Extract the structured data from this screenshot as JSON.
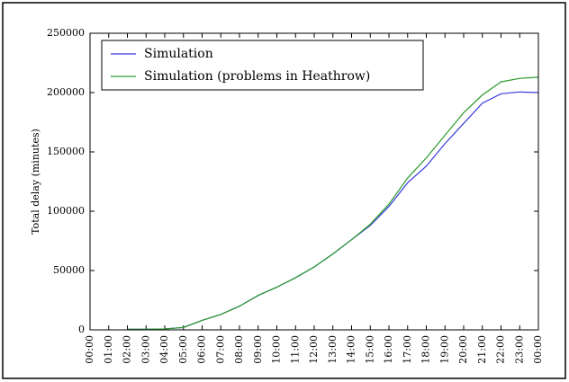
{
  "chart_data": {
    "type": "line",
    "ylabel": "Total delay (minutes)",
    "x": [
      2,
      3,
      4,
      5,
      6,
      7,
      8,
      9,
      10,
      11,
      12,
      13,
      14,
      15,
      16,
      17,
      18,
      19,
      20,
      21,
      22,
      23,
      24
    ],
    "series": [
      {
        "name": "Simulation",
        "color": "#3a3adb",
        "values": [
          500,
          500,
          800,
          2000,
          8000,
          13000,
          20000,
          29000,
          36000,
          44000,
          53000,
          64000,
          76000,
          88000,
          104000,
          124000,
          138000,
          157000,
          174000,
          191000,
          199000,
          200500,
          200000
        ]
      },
      {
        "name": "Simulation (problems in Heathrow)",
        "color": "#2a9a2a",
        "values": [
          500,
          500,
          800,
          2000,
          8000,
          13000,
          20000,
          29000,
          36000,
          44000,
          53000,
          64000,
          76000,
          89000,
          106000,
          128000,
          145000,
          164000,
          183000,
          198000,
          209000,
          212000,
          213000
        ]
      }
    ],
    "xlim": [
      0,
      24
    ],
    "xticks": [
      {
        "value": 0,
        "label": "00:00"
      },
      {
        "value": 1,
        "label": "01:00"
      },
      {
        "value": 2,
        "label": "02:00"
      },
      {
        "value": 3,
        "label": "03:00"
      },
      {
        "value": 4,
        "label": "04:00"
      },
      {
        "value": 5,
        "label": "05:00"
      },
      {
        "value": 6,
        "label": "06:00"
      },
      {
        "value": 7,
        "label": "07:00"
      },
      {
        "value": 8,
        "label": "08:00"
      },
      {
        "value": 9,
        "label": "09:00"
      },
      {
        "value": 10,
        "label": "10:00"
      },
      {
        "value": 11,
        "label": "11:00"
      },
      {
        "value": 12,
        "label": "12:00"
      },
      {
        "value": 13,
        "label": "13:00"
      },
      {
        "value": 14,
        "label": "14:00"
      },
      {
        "value": 15,
        "label": "15:00"
      },
      {
        "value": 16,
        "label": "16:00"
      },
      {
        "value": 17,
        "label": "17:00"
      },
      {
        "value": 18,
        "label": "18:00"
      },
      {
        "value": 19,
        "label": "19:00"
      },
      {
        "value": 20,
        "label": "20:00"
      },
      {
        "value": 21,
        "label": "21:00"
      },
      {
        "value": 22,
        "label": "22:00"
      },
      {
        "value": 23,
        "label": "23:00"
      },
      {
        "value": 24,
        "label": "00:00"
      }
    ],
    "ylim": [
      0,
      250000
    ],
    "yticks": [
      0,
      50000,
      100000,
      150000,
      200000,
      250000
    ],
    "grid": false,
    "legend": "upper-left"
  }
}
